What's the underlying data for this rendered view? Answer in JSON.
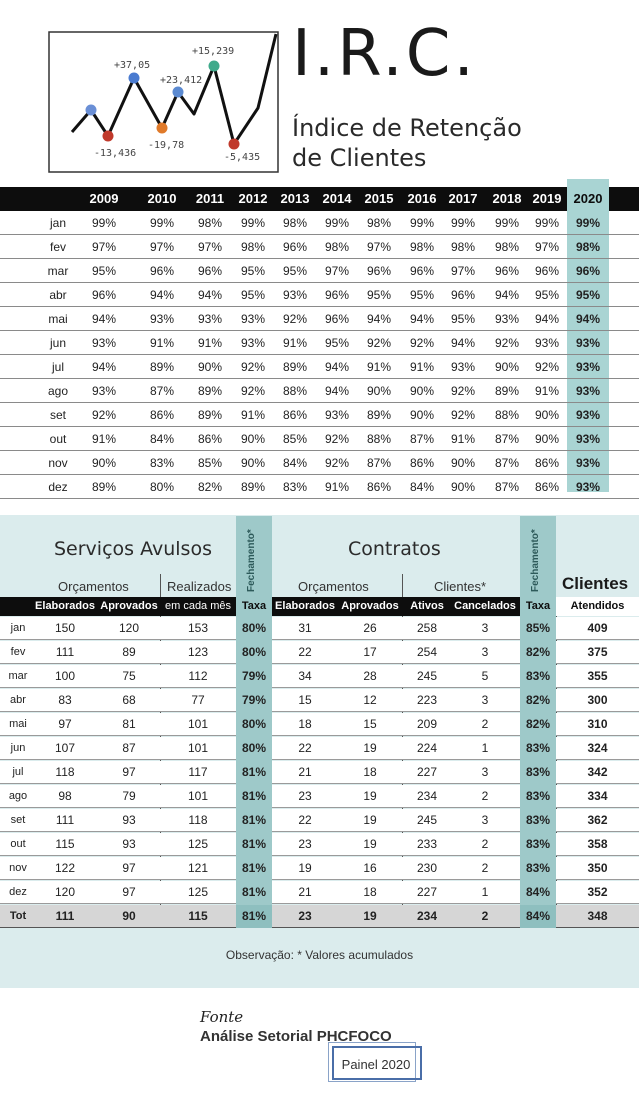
{
  "logo": {
    "labels": [
      "+37,05",
      "+23,412",
      "+15,239",
      "-13,436",
      "-19,78",
      "-5,435"
    ]
  },
  "header": {
    "title": "I.R.C.",
    "subtitle_line1": "Índice de Retenção",
    "subtitle_line2": "de Clientes"
  },
  "irc": {
    "years": [
      "2009",
      "2010",
      "2011",
      "2012",
      "2013",
      "2014",
      "2015",
      "2016",
      "2017",
      "2018",
      "2019",
      "2020"
    ],
    "rows": [
      {
        "month": "jan",
        "v": [
          "99%",
          "99%",
          "98%",
          "99%",
          "98%",
          "99%",
          "98%",
          "99%",
          "99%",
          "99%",
          "99%",
          "99%"
        ]
      },
      {
        "month": "fev",
        "v": [
          "97%",
          "97%",
          "97%",
          "98%",
          "96%",
          "98%",
          "97%",
          "98%",
          "98%",
          "98%",
          "97%",
          "98%"
        ]
      },
      {
        "month": "mar",
        "v": [
          "95%",
          "96%",
          "96%",
          "95%",
          "95%",
          "97%",
          "96%",
          "96%",
          "97%",
          "96%",
          "96%",
          "96%"
        ]
      },
      {
        "month": "abr",
        "v": [
          "96%",
          "94%",
          "94%",
          "95%",
          "93%",
          "96%",
          "95%",
          "95%",
          "96%",
          "94%",
          "95%",
          "95%"
        ]
      },
      {
        "month": "mai",
        "v": [
          "94%",
          "93%",
          "93%",
          "93%",
          "92%",
          "96%",
          "94%",
          "94%",
          "95%",
          "93%",
          "94%",
          "94%"
        ]
      },
      {
        "month": "jun",
        "v": [
          "93%",
          "91%",
          "91%",
          "93%",
          "91%",
          "95%",
          "92%",
          "92%",
          "94%",
          "92%",
          "93%",
          "93%"
        ]
      },
      {
        "month": "jul",
        "v": [
          "94%",
          "89%",
          "90%",
          "92%",
          "89%",
          "94%",
          "91%",
          "91%",
          "93%",
          "90%",
          "92%",
          "93%"
        ]
      },
      {
        "month": "ago",
        "v": [
          "93%",
          "87%",
          "89%",
          "92%",
          "88%",
          "94%",
          "90%",
          "90%",
          "92%",
          "89%",
          "91%",
          "93%"
        ]
      },
      {
        "month": "set",
        "v": [
          "92%",
          "86%",
          "89%",
          "91%",
          "86%",
          "93%",
          "89%",
          "90%",
          "92%",
          "88%",
          "90%",
          "93%"
        ]
      },
      {
        "month": "out",
        "v": [
          "91%",
          "84%",
          "86%",
          "90%",
          "85%",
          "92%",
          "88%",
          "87%",
          "91%",
          "87%",
          "90%",
          "93%"
        ]
      },
      {
        "month": "nov",
        "v": [
          "90%",
          "83%",
          "85%",
          "90%",
          "84%",
          "92%",
          "87%",
          "86%",
          "90%",
          "87%",
          "86%",
          "93%"
        ]
      },
      {
        "month": "dez",
        "v": [
          "89%",
          "80%",
          "82%",
          "89%",
          "83%",
          "91%",
          "86%",
          "84%",
          "90%",
          "87%",
          "86%",
          "93%"
        ]
      }
    ]
  },
  "services": {
    "avulsos_title": "Serviços Avulsos",
    "contratos_title": "Contratos",
    "orcamentos_label": "Orçamentos",
    "realizados_label": "Realizados",
    "orcamentos2_label": "Orçamentos",
    "clientes_star_label": "Clientes*",
    "fechamento_label": "Fechamento*",
    "clientes_label": "Clientes",
    "headers": {
      "elaborados": "Elaborados",
      "aprovados": "Aprovados",
      "em_cada_mes": "em cada mês",
      "taxa": "Taxa",
      "elaborados2": "Elaborados",
      "aprovados2": "Aprovados",
      "ativos": "Ativos",
      "cancelados": "Cancelados",
      "taxa2": "Taxa",
      "atendidos": "Atendidos"
    },
    "rows": [
      {
        "m": "jan",
        "v": [
          "150",
          "120",
          "153",
          "80%",
          "31",
          "26",
          "258",
          "3",
          "85%",
          "409"
        ]
      },
      {
        "m": "fev",
        "v": [
          "111",
          "89",
          "123",
          "80%",
          "22",
          "17",
          "254",
          "3",
          "82%",
          "375"
        ]
      },
      {
        "m": "mar",
        "v": [
          "100",
          "75",
          "112",
          "79%",
          "34",
          "28",
          "245",
          "5",
          "83%",
          "355"
        ]
      },
      {
        "m": "abr",
        "v": [
          "83",
          "68",
          "77",
          "79%",
          "15",
          "12",
          "223",
          "3",
          "82%",
          "300"
        ]
      },
      {
        "m": "mai",
        "v": [
          "97",
          "81",
          "101",
          "80%",
          "18",
          "15",
          "209",
          "2",
          "82%",
          "310"
        ]
      },
      {
        "m": "jun",
        "v": [
          "107",
          "87",
          "101",
          "80%",
          "22",
          "19",
          "224",
          "1",
          "83%",
          "324"
        ]
      },
      {
        "m": "jul",
        "v": [
          "118",
          "97",
          "117",
          "81%",
          "21",
          "18",
          "227",
          "3",
          "83%",
          "342"
        ]
      },
      {
        "m": "ago",
        "v": [
          "98",
          "79",
          "101",
          "81%",
          "23",
          "19",
          "234",
          "2",
          "83%",
          "334"
        ]
      },
      {
        "m": "set",
        "v": [
          "111",
          "93",
          "118",
          "81%",
          "22",
          "19",
          "245",
          "3",
          "83%",
          "362"
        ]
      },
      {
        "m": "out",
        "v": [
          "115",
          "93",
          "125",
          "81%",
          "23",
          "19",
          "233",
          "2",
          "83%",
          "358"
        ]
      },
      {
        "m": "nov",
        "v": [
          "122",
          "97",
          "121",
          "81%",
          "19",
          "16",
          "230",
          "2",
          "83%",
          "350"
        ]
      },
      {
        "m": "dez",
        "v": [
          "120",
          "97",
          "125",
          "81%",
          "21",
          "18",
          "227",
          "1",
          "84%",
          "352"
        ]
      }
    ],
    "total": {
      "m": "Tot",
      "v": [
        "111",
        "90",
        "115",
        "81%",
        "23",
        "19",
        "234",
        "2",
        "84%",
        "348"
      ]
    },
    "observacao": "Observação: * Valores acumulados"
  },
  "footer": {
    "fonte": "Fonte",
    "source": "Análise Setorial PHCFOCO",
    "painel": "Painel 2020"
  },
  "colors": {
    "highlight": "#a9d4d3",
    "panel_bg": "#dbeced",
    "header_bg": "#0d0d0d"
  }
}
